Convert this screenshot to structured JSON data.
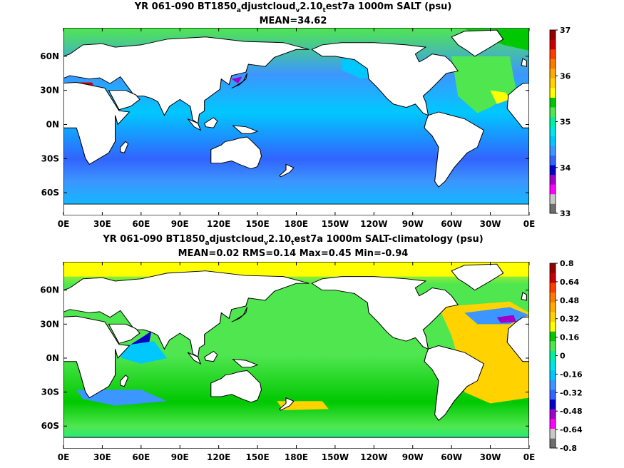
{
  "chart_data": [
    {
      "type": "heatmap",
      "title": "YR 061-090 BT1850",
      "title_sub1": "a",
      "title_mid1": "djustcloud",
      "title_sub2": "v",
      "title_mid2": "2.10",
      "title_sub3": "t",
      "title_end": "est7a 1000m SALT (psu)",
      "subtitle": "MEAN=34.62",
      "x_ticks": [
        "0E",
        "30E",
        "60E",
        "90E",
        "120E",
        "150E",
        "180E",
        "150W",
        "120W",
        "90W",
        "60W",
        "30W",
        "0E"
      ],
      "x_range": [
        0,
        360
      ],
      "y_ticks": [
        "60N",
        "30N",
        "0N",
        "30S",
        "60S"
      ],
      "y_tick_values": [
        60,
        30,
        0,
        -30,
        -60
      ],
      "y_range": [
        -80,
        85
      ],
      "colorbar_labels": [
        "37",
        "36",
        "35",
        "34",
        "33"
      ],
      "colorbar_label_values": [
        37,
        36,
        35,
        34,
        33
      ],
      "colorbar_range": [
        33,
        37
      ],
      "colorbar_colors": [
        "#6e6e6e",
        "#c8c8c8",
        "#ff00ff",
        "#a000c8",
        "#0000c8",
        "#3264ff",
        "#3c96ff",
        "#00c8ff",
        "#00e6e6",
        "#00f0a0",
        "#50e650",
        "#00c800",
        "#ffff00",
        "#ffd200",
        "#ffaa00",
        "#ff7800",
        "#ff3c00",
        "#c80000",
        "#960000"
      ],
      "field_mean": 34.62
    },
    {
      "type": "heatmap",
      "title": "YR 061-090 BT1850",
      "title_sub1": "a",
      "title_mid1": "djustcloud",
      "title_sub2": "v",
      "title_mid2": "2.10",
      "title_sub3": "t",
      "title_end": "est7a 1000m SALT-climatology (psu)",
      "subtitle": "MEAN=0.02   RMS=0.14   Max=0.45   Min=-0.94",
      "x_ticks": [
        "0E",
        "30E",
        "60E",
        "90E",
        "120E",
        "150E",
        "180E",
        "150W",
        "120W",
        "90W",
        "60W",
        "30W",
        "0E"
      ],
      "x_range": [
        0,
        360
      ],
      "y_ticks": [
        "60N",
        "30N",
        "0N",
        "30S",
        "60S"
      ],
      "y_tick_values": [
        60,
        30,
        0,
        -30,
        -60
      ],
      "y_range": [
        -80,
        85
      ],
      "colorbar_labels": [
        "0.8",
        "0.64",
        "0.48",
        "0.32",
        "0.16",
        "0",
        "-0.16",
        "-0.32",
        "-0.48",
        "-0.64",
        "-0.8"
      ],
      "colorbar_label_values": [
        0.8,
        0.64,
        0.48,
        0.32,
        0.16,
        0,
        -0.16,
        -0.32,
        -0.48,
        -0.64,
        -0.8
      ],
      "colorbar_range": [
        -0.8,
        0.8
      ],
      "colorbar_colors": [
        "#6e6e6e",
        "#c8c8c8",
        "#ff00ff",
        "#a000c8",
        "#0000c8",
        "#3264ff",
        "#3c96ff",
        "#00c8ff",
        "#00e6e6",
        "#00f0a0",
        "#50e650",
        "#00c800",
        "#ffff00",
        "#ffd200",
        "#ffaa00",
        "#ff7800",
        "#ff3c00",
        "#c80000",
        "#960000"
      ],
      "stats": {
        "mean": 0.02,
        "rms": 0.14,
        "max": 0.45,
        "min": -0.94
      }
    }
  ]
}
